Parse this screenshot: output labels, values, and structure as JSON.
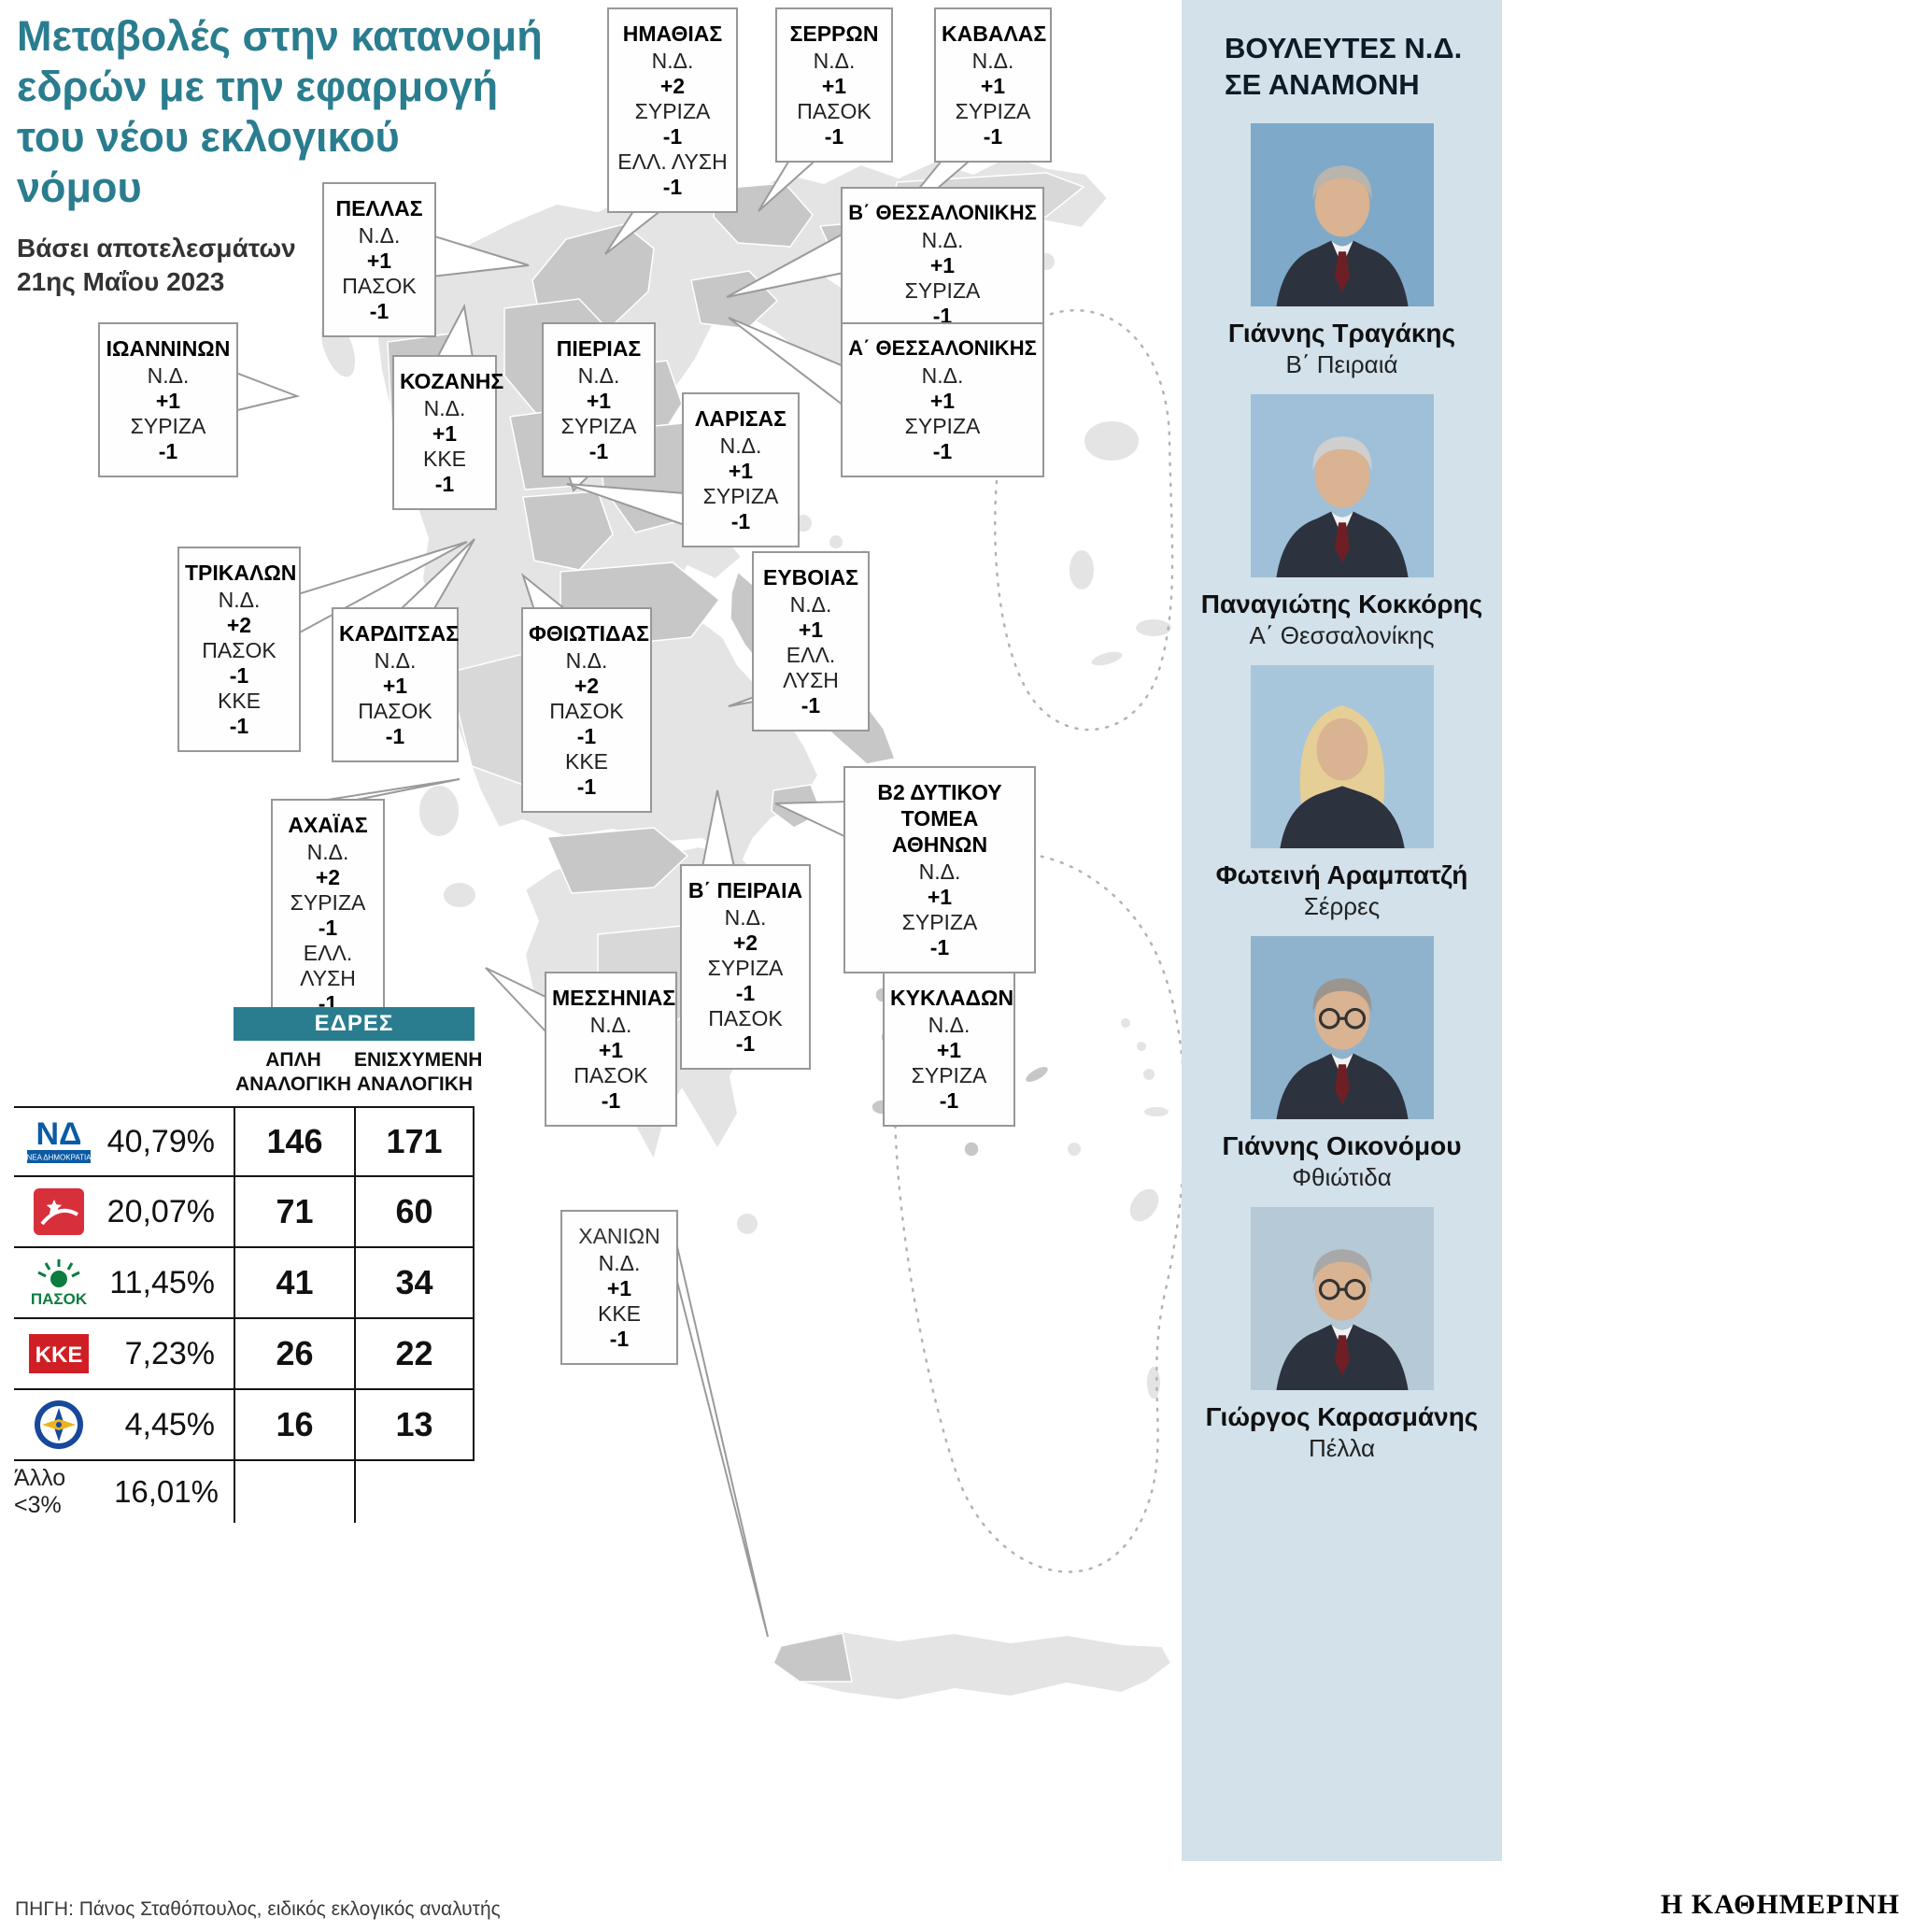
{
  "header": {
    "title_lines": [
      "Μεταβολές στην κατανομή",
      "εδρών με την εφαρμογή",
      "του νέου εκλογικού",
      "νόμου"
    ],
    "subtitle_lines": [
      "Βάσει αποτελεσμάτων",
      "21ης Μαΐου 2023"
    ]
  },
  "callouts": [
    {
      "id": "imathias",
      "name": "ΗΜΑΘΙΑΣ",
      "changes": [
        {
          "party": "Ν.Δ.",
          "delta": "+2"
        },
        {
          "party": "ΣΥΡΙΖΑ",
          "delta": "-1"
        },
        {
          "party": "ΕΛΛ. ΛΥΣΗ",
          "delta": "-1"
        }
      ]
    },
    {
      "id": "serron",
      "name": "ΣΕΡΡΩΝ",
      "changes": [
        {
          "party": "Ν.Δ.",
          "delta": "+1"
        },
        {
          "party": "ΠΑΣΟΚ",
          "delta": "-1"
        }
      ]
    },
    {
      "id": "kavalas",
      "name": "ΚΑΒΑΛΑΣ",
      "changes": [
        {
          "party": "Ν.Δ.",
          "delta": "+1"
        },
        {
          "party": "ΣΥΡΙΖΑ",
          "delta": "-1"
        }
      ]
    },
    {
      "id": "pellas",
      "name": "ΠΕΛΛΑΣ",
      "changes": [
        {
          "party": "Ν.Δ.",
          "delta": "+1"
        },
        {
          "party": "ΠΑΣΟΚ",
          "delta": "-1"
        }
      ]
    },
    {
      "id": "b-thessalonikis",
      "name": "Β΄ ΘΕΣΣΑΛΟΝΙΚΗΣ",
      "changes": [
        {
          "party": "Ν.Δ.",
          "delta": "+1"
        },
        {
          "party": "ΣΥΡΙΖΑ",
          "delta": "-1"
        }
      ]
    },
    {
      "id": "a-thessalonikis",
      "name": "Α΄ ΘΕΣΣΑΛΟΝΙΚΗΣ",
      "changes": [
        {
          "party": "Ν.Δ.",
          "delta": "+1"
        },
        {
          "party": "ΣΥΡΙΖΑ",
          "delta": "-1"
        }
      ]
    },
    {
      "id": "ioanninon",
      "name": "ΙΩΑΝΝΙΝΩΝ",
      "changes": [
        {
          "party": "Ν.Δ.",
          "delta": "+1"
        },
        {
          "party": "ΣΥΡΙΖΑ",
          "delta": "-1"
        }
      ]
    },
    {
      "id": "kozanis",
      "name": "ΚΟΖΑΝΗΣ",
      "changes": [
        {
          "party": "Ν.Δ.",
          "delta": "+1"
        },
        {
          "party": "ΚΚΕ",
          "delta": "-1"
        }
      ]
    },
    {
      "id": "pierias",
      "name": "ΠΙΕΡΙΑΣ",
      "changes": [
        {
          "party": "Ν.Δ.",
          "delta": "+1"
        },
        {
          "party": "ΣΥΡΙΖΑ",
          "delta": "-1"
        }
      ]
    },
    {
      "id": "larisas",
      "name": "ΛΑΡΙΣΑΣ",
      "changes": [
        {
          "party": "Ν.Δ.",
          "delta": "+1"
        },
        {
          "party": "ΣΥΡΙΖΑ",
          "delta": "-1"
        }
      ]
    },
    {
      "id": "trikalon",
      "name": "ΤΡΙΚΑΛΩΝ",
      "changes": [
        {
          "party": "Ν.Δ.",
          "delta": "+2"
        },
        {
          "party": "ΠΑΣΟΚ",
          "delta": "-1"
        },
        {
          "party": "ΚΚΕ",
          "delta": "-1"
        }
      ]
    },
    {
      "id": "karditsas",
      "name": "ΚΑΡΔΙΤΣΑΣ",
      "changes": [
        {
          "party": "Ν.Δ.",
          "delta": "+1"
        },
        {
          "party": "ΠΑΣΟΚ",
          "delta": "-1"
        }
      ]
    },
    {
      "id": "fthiotidas",
      "name": "ΦΘΙΩΤΙΔΑΣ",
      "changes": [
        {
          "party": "Ν.Δ.",
          "delta": "+2"
        },
        {
          "party": "ΠΑΣΟΚ",
          "delta": "-1"
        },
        {
          "party": "ΚΚΕ",
          "delta": "-1"
        }
      ]
    },
    {
      "id": "evvoias",
      "name": "ΕΥΒΟΙΑΣ",
      "changes": [
        {
          "party": "Ν.Δ.",
          "delta": "+1"
        },
        {
          "party": "ΕΛΛ. ΛΥΣΗ",
          "delta": "-1"
        }
      ]
    },
    {
      "id": "achaias",
      "name": "ΑΧΑΪΑΣ",
      "changes": [
        {
          "party": "Ν.Δ.",
          "delta": "+2"
        },
        {
          "party": "ΣΥΡΙΖΑ",
          "delta": "-1"
        },
        {
          "party": "ΕΛΛ. ΛΥΣΗ",
          "delta": "-1"
        }
      ]
    },
    {
      "id": "b2-dytikou-tomea-athinon",
      "name": "Β2 ΔΥΤΙΚΟΥ ΤΟΜΕΑ ΑΘΗΝΩΝ",
      "changes": [
        {
          "party": "Ν.Δ.",
          "delta": "+1"
        },
        {
          "party": "ΣΥΡΙΖΑ",
          "delta": "-1"
        }
      ]
    },
    {
      "id": "b-peiraia",
      "name": "Β΄ ΠΕΙΡΑΙΑ",
      "changes": [
        {
          "party": "Ν.Δ.",
          "delta": "+2"
        },
        {
          "party": "ΣΥΡΙΖΑ",
          "delta": "-1"
        },
        {
          "party": "ΠΑΣΟΚ",
          "delta": "-1"
        }
      ]
    },
    {
      "id": "messinias",
      "name": "ΜΕΣΣΗΝΙΑΣ",
      "changes": [
        {
          "party": "Ν.Δ.",
          "delta": "+1"
        },
        {
          "party": "ΠΑΣΟΚ",
          "delta": "-1"
        }
      ]
    },
    {
      "id": "kykladon",
      "name": "ΚΥΚΛΑΔΩΝ",
      "changes": [
        {
          "party": "Ν.Δ.",
          "delta": "+1"
        },
        {
          "party": "ΣΥΡΙΖΑ",
          "delta": "-1"
        }
      ]
    },
    {
      "id": "chanion",
      "name": "ΧΑΝΙΩΝ",
      "changes": [
        {
          "party": "Ν.Δ.",
          "delta": "+1"
        },
        {
          "party": "ΚΚΕ",
          "delta": "-1"
        }
      ]
    }
  ],
  "seats_table": {
    "title": "ΕΔΡΕΣ",
    "columns": [
      "ΑΠΛΗ ΑΝΑΛΟΓΙΚΗ",
      "ΕΝΙΣΧΥΜΕΝΗ ΑΝΑΛΟΓΙΚΗ"
    ],
    "rows": [
      {
        "party": "ΝΕΑ ΔΗΜΟΚΡΑΤΙΑ",
        "logo": "nd-logo",
        "percent": "40,79%",
        "simple": "146",
        "enhanced": "171"
      },
      {
        "party": "ΣΥΡΙΖΑ",
        "logo": "syriza-logo",
        "percent": "20,07%",
        "simple": "71",
        "enhanced": "60"
      },
      {
        "party": "ΠΑΣΟΚ",
        "logo": "pasok-logo",
        "percent": "11,45%",
        "simple": "41",
        "enhanced": "34"
      },
      {
        "party": "ΚΚΕ",
        "logo": "kke-logo",
        "percent": "7,23%",
        "simple": "26",
        "enhanced": "22"
      },
      {
        "party": "ΕΛΛΗΝΙΚΗ ΛΥΣΗ",
        "logo": "elliniki-lysi-logo",
        "percent": "4,45%",
        "simple": "16",
        "enhanced": "13"
      }
    ],
    "other_row": {
      "label": "Άλλο <3%",
      "percent": "16,01%"
    }
  },
  "sidebar": {
    "title_lines": [
      "ΒΟΥΛΕΥΤΕΣ Ν.Δ.",
      "ΣΕ ΑΝΑΜΟΝΗ"
    ],
    "mps": [
      {
        "name": "Γιάννης Τραγάκης",
        "district": "Β΄ Πειραιά",
        "photo": "mp-portrait-photo"
      },
      {
        "name": "Παναγιώτης Κοκκόρης",
        "district": "Α΄ Θεσσαλονίκης",
        "photo": "mp-portrait-photo"
      },
      {
        "name": "Φωτεινή Αραμπατζή",
        "district": "Σέρρες",
        "photo": "mp-portrait-photo"
      },
      {
        "name": "Γιάννης Οικονόμου",
        "district": "Φθιώτιδα",
        "photo": "mp-portrait-photo"
      },
      {
        "name": "Γιώργος Καρασμάνης",
        "district": "Πέλλα",
        "photo": "mp-portrait-photo"
      }
    ]
  },
  "footer": {
    "source": "ΠΗΓΗ: Πάνος Σταθόπουλος, ειδικός εκλογικός αναλυτής",
    "brand": "Η ΚΑΘΗΜΕΡΙΝΗ"
  },
  "colors": {
    "accent_teal": "#2a7d8f",
    "sidebar_blue": "#d2e1ea",
    "map_light": "#e4e4e4",
    "map_highlight": "#c7c7c7",
    "nd_blue": "#0b5aa5",
    "syriza_red": "#d7303b",
    "pasok_green": "#0c7d3e",
    "kke_red": "#cf1f25",
    "elliniki_lysi_blue": "#17489c"
  }
}
